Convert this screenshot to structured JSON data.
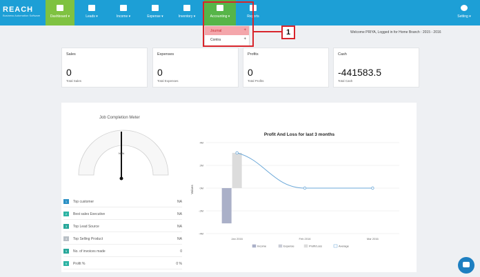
{
  "nav": {
    "logo": "REACH",
    "logo_sub": "Business Automation Software",
    "items": [
      {
        "label": "Dashboard ▾",
        "icon": "dashboard-icon"
      },
      {
        "label": "Leads ▾",
        "icon": "leads-icon"
      },
      {
        "label": "Income ▾",
        "icon": "income-icon"
      },
      {
        "label": "Expense ▾",
        "icon": "expense-icon"
      },
      {
        "label": "Inventory ▾",
        "icon": "inventory-icon"
      },
      {
        "label": "Accounting ▾",
        "icon": "accounting-icon"
      },
      {
        "label": "Reports",
        "icon": "reports-icon"
      },
      {
        "label": "Setting ▾",
        "icon": "gear-icon"
      }
    ]
  },
  "dropdown": {
    "items": [
      {
        "label": "Journal",
        "suffix": "+"
      },
      {
        "label": "Contra",
        "suffix": "+"
      }
    ]
  },
  "callout": "1",
  "welcome": "Welcome PRIYA, Logged in for Home Branch : 2015 - 2016",
  "cards": [
    {
      "title": "Sales",
      "value": "0",
      "sub": "Total Sales"
    },
    {
      "title": "Expenses",
      "value": "0",
      "sub": "Total Expenses"
    },
    {
      "title": "Profits",
      "value": "0",
      "sub": "Total Profits"
    },
    {
      "title": "Cash",
      "value": "-441583.5",
      "sub": "Total Cash"
    }
  ],
  "meter": {
    "title": "Job Completion Meter",
    "value_label": "NaN"
  },
  "stats": [
    {
      "badge": "1",
      "label": "Top customer",
      "value": "NA",
      "color": "#2a8fc4"
    },
    {
      "badge": "2",
      "label": "Best sales Executive",
      "value": "NA",
      "color": "#2bb3a3"
    },
    {
      "badge": "3",
      "label": "Top Lead Source",
      "value": "NA",
      "color": "#27a79a"
    },
    {
      "badge": "4",
      "label": "Top Selling Product",
      "value": "NA",
      "color": "#b9c0c6"
    },
    {
      "badge": "5",
      "label": "No. of invoices made",
      "value": "0",
      "color": "#27a79a"
    },
    {
      "badge": "6",
      "label": "Profit %",
      "value": "0 %",
      "color": "#2bb3a3"
    }
  ],
  "chart_data": {
    "type": "bar",
    "title": "Profit And Loss for last 3 months",
    "ylabel": "Values",
    "categories": [
      "Jan 2016",
      "Feb 2016",
      "Mar 2016"
    ],
    "y_ticks": [
      "4M",
      "2M",
      "0M",
      "-2M",
      "-4M"
    ],
    "ylim": [
      -4,
      4
    ],
    "series": [
      {
        "name": "Income",
        "kind": "bar",
        "color": "#aab0c8",
        "values": [
          -3.1,
          0,
          0
        ]
      },
      {
        "name": "Expense",
        "kind": "bar",
        "color": "#c9ccd6",
        "values": [
          0,
          0,
          0
        ]
      },
      {
        "name": "Profit/Loss",
        "kind": "bar",
        "color": "#dcdcdc",
        "values": [
          3.1,
          0,
          0
        ]
      },
      {
        "name": "Average",
        "kind": "line",
        "color": "#6aa7d8",
        "values": [
          3.1,
          0,
          0
        ]
      }
    ],
    "legend": "bottom",
    "grid": true
  }
}
